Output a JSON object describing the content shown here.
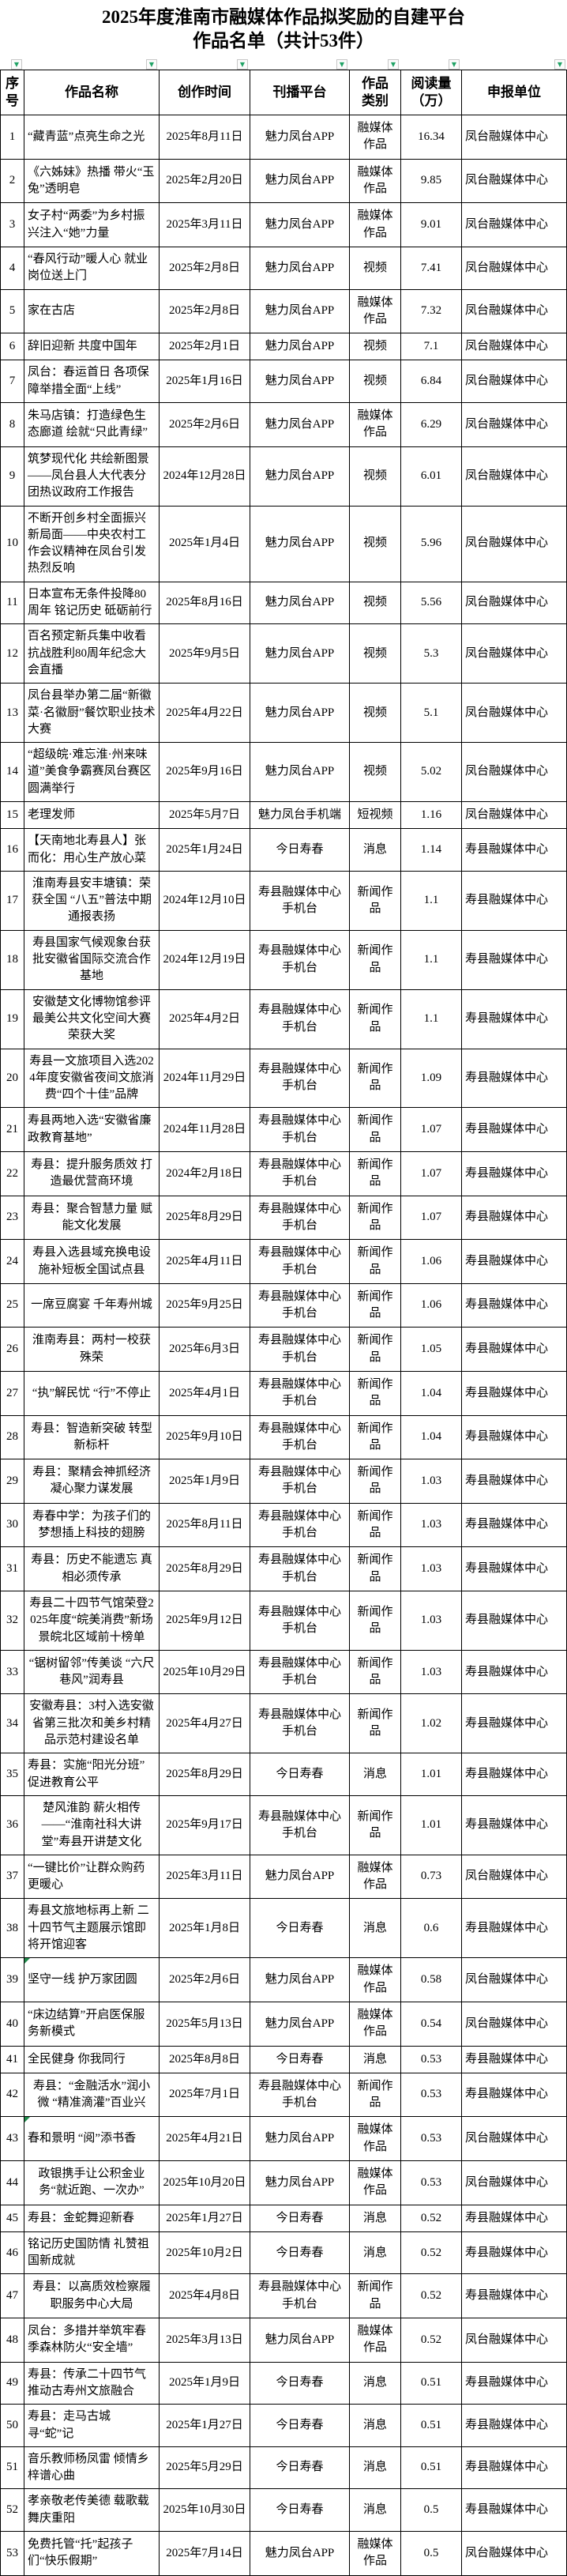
{
  "doc": {
    "title_line1": "2025年度淮南市融媒体作品拟奖励的自建平台",
    "title_line2": "作品名单（共计53件）"
  },
  "colors": {
    "filter_green": "#21a366",
    "flag_green": "#1e8a4a",
    "border": "#000000",
    "background": "#ffffff",
    "text": "#000000"
  },
  "icons": {
    "filter_dropdown": "▼"
  },
  "table": {
    "headers": [
      "序号",
      "作品名称",
      "创作时间",
      "刊播平台",
      "作品\n类别",
      "阅读量\n（万）",
      "申报单位"
    ],
    "rows": [
      {
        "no": "1",
        "name": "“藏青蓝”点亮生命之光",
        "date": "2025年8月11日",
        "platform": "魅力凤台APP",
        "category": "融媒体作品",
        "views": "16.34",
        "unit": "凤台融媒体中心",
        "align": "left",
        "flag": false
      },
      {
        "no": "2",
        "name": "《六姊妹》热播 带火“玉兔”透明皂",
        "date": "2025年2月20日",
        "platform": "魅力凤台APP",
        "category": "融媒体作品",
        "views": "9.85",
        "unit": "凤台融媒体中心",
        "align": "left",
        "flag": false
      },
      {
        "no": "3",
        "name": "女子村“两委”为乡村振兴注入“她”力量",
        "date": "2025年3月11日",
        "platform": "魅力凤台APP",
        "category": "融媒体作品",
        "views": "9.01",
        "unit": "凤台融媒体中心",
        "align": "left",
        "flag": false
      },
      {
        "no": "4",
        "name": "“春风行动”暖人心 就业岗位送上门",
        "date": "2025年2月8日",
        "platform": "魅力凤台APP",
        "category": "视频",
        "views": "7.41",
        "unit": "凤台融媒体中心",
        "align": "left",
        "flag": false
      },
      {
        "no": "5",
        "name": "家在古店",
        "date": "2025年2月8日",
        "platform": "魅力凤台APP",
        "category": "融媒体作品",
        "views": "7.32",
        "unit": "凤台融媒体中心",
        "align": "left",
        "flag": false
      },
      {
        "no": "6",
        "name": "辞旧迎新 共度中国年",
        "date": "2025年2月1日",
        "platform": "魅力凤台APP",
        "category": "视频",
        "views": "7.1",
        "unit": "凤台融媒体中心",
        "align": "left",
        "flag": false
      },
      {
        "no": "7",
        "name": "凤台：春运首日 各项保障举措全面“上线”",
        "date": "2025年1月16日",
        "platform": "魅力凤台APP",
        "category": "视频",
        "views": "6.84",
        "unit": "凤台融媒体中心",
        "align": "left",
        "flag": false
      },
      {
        "no": "8",
        "name": "朱马店镇：打造绿色生态廊道  绘就“只此青绿”",
        "date": "2025年2月6日",
        "platform": "魅力凤台APP",
        "category": "融媒体作品",
        "views": "6.29",
        "unit": "凤台融媒体中心",
        "align": "left",
        "flag": false
      },
      {
        "no": "9",
        "name": "筑梦现代化 共绘新图景——凤台县人大代表分团热议政府工作报告",
        "date": "2024年12月28日",
        "platform": "魅力凤台APP",
        "category": "视频",
        "views": "6.01",
        "unit": "凤台融媒体中心",
        "align": "left",
        "flag": false
      },
      {
        "no": "10",
        "name": "不断开创乡村全面振兴新局面——中央农村工作会议精神在凤台引发热烈反响",
        "date": "2025年1月4日",
        "platform": "魅力凤台APP",
        "category": "视频",
        "views": "5.96",
        "unit": "凤台融媒体中心",
        "align": "left",
        "flag": false
      },
      {
        "no": "11",
        "name": "日本宣布无条件投降80周年 铭记历史 砥砺前行",
        "date": "2025年8月16日",
        "platform": "魅力凤台APP",
        "category": "视频",
        "views": "5.56",
        "unit": "凤台融媒体中心",
        "align": "left",
        "flag": false
      },
      {
        "no": "12",
        "name": "百名预定新兵集中收看抗战胜利80周年纪念大会直播",
        "date": "2025年9月5日",
        "platform": "魅力凤台APP",
        "category": "视频",
        "views": "5.3",
        "unit": "凤台融媒体中心",
        "align": "left",
        "flag": false
      },
      {
        "no": "13",
        "name": "凤台县举办第二届“新徽菜·名徽厨”餐饮职业技术大赛",
        "date": "2025年4月22日",
        "platform": "魅力凤台APP",
        "category": "视频",
        "views": "5.1",
        "unit": "凤台融媒体中心",
        "align": "left",
        "flag": false
      },
      {
        "no": "14",
        "name": "“超级皖·难忘淮·州来味道”美食争霸赛凤台赛区圆满举行",
        "date": "2025年9月16日",
        "platform": "魅力凤台APP",
        "category": "视频",
        "views": "5.02",
        "unit": "凤台融媒体中心",
        "align": "left",
        "flag": false
      },
      {
        "no": "15",
        "name": "老理发师",
        "date": "2025年5月7日",
        "platform": "魅力凤台手机端",
        "category": "短视频",
        "views": "1.16",
        "unit": "凤台融媒体中心",
        "align": "left",
        "flag": false
      },
      {
        "no": "16",
        "name": "【天南地北寿县人】张而化：用心生产放心菜",
        "date": "2025年1月24日",
        "platform": "今日寿春",
        "category": "消息",
        "views": "1.14",
        "unit": "寿县融媒体中心",
        "align": "left",
        "flag": false
      },
      {
        "no": "17",
        "name": "淮南寿县安丰塘镇：荣获全国 “八五”普法中期通报表扬",
        "date": "2024年12月10日",
        "platform": "寿县融媒体中心手机台",
        "category": "新闻作品",
        "views": "1.1",
        "unit": "寿县融媒体中心",
        "align": "center",
        "flag": false
      },
      {
        "no": "18",
        "name": "寿县国家气候观象台获批安徽省国际交流合作基地",
        "date": "2024年12月19日",
        "platform": "寿县融媒体中心手机台",
        "category": "新闻作品",
        "views": "1.1",
        "unit": "寿县融媒体中心",
        "align": "center",
        "flag": false
      },
      {
        "no": "19",
        "name": "安徽楚文化博物馆参评最美公共文化空间大赛荣获大奖",
        "date": "2025年4月2日",
        "platform": "寿县融媒体中心手机台",
        "category": "新闻作品",
        "views": "1.1",
        "unit": "寿县融媒体中心",
        "align": "center",
        "flag": false
      },
      {
        "no": "20",
        "name": "寿县一文旅项目入选2024年度安徽省夜间文旅消费“四个十佳”品牌",
        "date": "2024年11月29日",
        "platform": "寿县融媒体中心手机台",
        "category": "新闻作品",
        "views": "1.09",
        "unit": "寿县融媒体中心",
        "align": "center",
        "flag": false
      },
      {
        "no": "21",
        "name": "寿县两地入选“安徽省廉政教育基地”",
        "date": "2024年11月28日",
        "platform": "寿县融媒体中心手机台",
        "category": "新闻作品",
        "views": "1.07",
        "unit": "寿县融媒体中心",
        "align": "left",
        "flag": false
      },
      {
        "no": "22",
        "name": "寿县：提升服务质效 打造最优营商环境",
        "date": "2024年2月18日",
        "platform": "寿县融媒体中心手机台",
        "category": "新闻作品",
        "views": "1.07",
        "unit": "寿县融媒体中心",
        "align": "center",
        "flag": false
      },
      {
        "no": "23",
        "name": "寿县：聚合智慧力量 赋能文化发展",
        "date": "2025年8月29日",
        "platform": "寿县融媒体中心手机台",
        "category": "新闻作品",
        "views": "1.07",
        "unit": "寿县融媒体中心",
        "align": "center",
        "flag": false
      },
      {
        "no": "24",
        "name": "寿县入选县域充换电设施补短板全国试点县",
        "date": "2025年4月11日",
        "platform": "寿县融媒体中心手机台",
        "category": "新闻作品",
        "views": "1.06",
        "unit": "寿县融媒体中心",
        "align": "center",
        "flag": false
      },
      {
        "no": "25",
        "name": "一席豆腐宴 千年寿州城",
        "date": "2025年9月25日",
        "platform": "寿县融媒体中心手机台",
        "category": "新闻作品",
        "views": "1.06",
        "unit": "寿县融媒体中心",
        "align": "center",
        "flag": false
      },
      {
        "no": "26",
        "name": "淮南寿县：两村一校获殊荣",
        "date": "2025年6月3日",
        "platform": "寿县融媒体中心手机台",
        "category": "新闻作品",
        "views": "1.05",
        "unit": "寿县融媒体中心",
        "align": "center",
        "flag": false
      },
      {
        "no": "27",
        "name": "“执”解民忧 “行”不停止",
        "date": "2025年4月1日",
        "platform": "寿县融媒体中心手机台",
        "category": "新闻作品",
        "views": "1.04",
        "unit": "寿县融媒体中心",
        "align": "center",
        "flag": false
      },
      {
        "no": "28",
        "name": "寿县：智造新突破 转型新标杆",
        "date": "2025年9月10日",
        "platform": "寿县融媒体中心手机台",
        "category": "新闻作品",
        "views": "1.04",
        "unit": "寿县融媒体中心",
        "align": "center",
        "flag": false
      },
      {
        "no": "29",
        "name": "寿县：聚精会神抓经济 凝心聚力谋发展",
        "date": "2025年1月9日",
        "platform": "寿县融媒体中心手机台",
        "category": "新闻作品",
        "views": "1.03",
        "unit": "寿县融媒体中心",
        "align": "center",
        "flag": false
      },
      {
        "no": "30",
        "name": "寿春中学：为孩子们的梦想插上科技的翅膀",
        "date": "2025年8月11日",
        "platform": "寿县融媒体中心手机台",
        "category": "新闻作品",
        "views": "1.03",
        "unit": "寿县融媒体中心",
        "align": "center",
        "flag": false
      },
      {
        "no": "31",
        "name": "寿县：历史不能遗忘 真相必须传承",
        "date": "2025年8月29日",
        "platform": "寿县融媒体中心手机台",
        "category": "新闻作品",
        "views": "1.03",
        "unit": "寿县融媒体中心",
        "align": "center",
        "flag": false
      },
      {
        "no": "32",
        "name": "寿县二十四节气馆荣登2025年度“皖美消费”新场景皖北区域前十榜单",
        "date": "2025年9月12日",
        "platform": "寿县融媒体中心手机台",
        "category": "新闻作品",
        "views": "1.03",
        "unit": "寿县融媒体中心",
        "align": "center",
        "flag": false
      },
      {
        "no": "33",
        "name": "“锯树留邻”传美谈 “六尺巷风”润寿县",
        "date": "2025年10月29日",
        "platform": "寿县融媒体中心手机台",
        "category": "新闻作品",
        "views": "1.03",
        "unit": "寿县融媒体中心",
        "align": "center",
        "flag": false
      },
      {
        "no": "34",
        "name": "安徽寿县：3村入选安徽省第三批次和美乡村精品示范村建设名单",
        "date": "2025年4月27日",
        "platform": "寿县融媒体中心手机台",
        "category": "新闻作品",
        "views": "1.02",
        "unit": "寿县融媒体中心",
        "align": "center",
        "flag": false
      },
      {
        "no": "35",
        "name": "寿县：实施“阳光分班” 促进教育公平",
        "date": "2025年8月29日",
        "platform": "今日寿春",
        "category": "消息",
        "views": "1.01",
        "unit": "寿县融媒体中心",
        "align": "left",
        "flag": false
      },
      {
        "no": "36",
        "name": "楚风淮韵 薪火相传——“淮南社科大讲堂”寿县开讲楚文化",
        "date": "2025年9月17日",
        "platform": "寿县融媒体中心手机台",
        "category": "新闻作品",
        "views": "1.01",
        "unit": "寿县融媒体中心",
        "align": "center",
        "flag": false
      },
      {
        "no": "37",
        "name": "“一键比价”让群众购药更暖心",
        "date": "2025年3月11日",
        "platform": "魅力凤台APP",
        "category": "融媒体作品",
        "views": "0.73",
        "unit": "凤台融媒体中心",
        "align": "left",
        "flag": false
      },
      {
        "no": "38",
        "name": "寿县文旅地标再上新 二十四节气主题展示馆即将开馆迎客",
        "date": "2025年1月8日",
        "platform": "今日寿春",
        "category": "消息",
        "views": "0.6",
        "unit": "寿县融媒体中心",
        "align": "left",
        "flag": false
      },
      {
        "no": "39",
        "name": "坚守一线  护万家团圆",
        "date": "2025年2月6日",
        "platform": "魅力凤台APP",
        "category": "融媒体作品",
        "views": "0.58",
        "unit": "凤台融媒体中心",
        "align": "left",
        "flag": true
      },
      {
        "no": "40",
        "name": "“床边结算”开启医保服务新模式",
        "date": "2025年5月13日",
        "platform": "魅力凤台APP",
        "category": "融媒体作品",
        "views": "0.54",
        "unit": "凤台融媒体中心",
        "align": "left",
        "flag": false
      },
      {
        "no": "41",
        "name": "全民健身 你我同行",
        "date": "2025年8月8日",
        "platform": "今日寿春",
        "category": "消息",
        "views": "0.53",
        "unit": "寿县融媒体中心",
        "align": "left",
        "flag": false
      },
      {
        "no": "42",
        "name": "寿县：“金融活水”润小微 “精准滴灌”百业兴",
        "date": "2025年7月1日",
        "platform": "寿县融媒体中心手机台",
        "category": "新闻作品",
        "views": "0.53",
        "unit": "寿县融媒体中心",
        "align": "center",
        "flag": false
      },
      {
        "no": "43",
        "name": "春和景明 “阅”添书香",
        "date": "2025年4月21日",
        "platform": "魅力凤台APP",
        "category": "融媒体作品",
        "views": "0.53",
        "unit": "凤台融媒体中心",
        "align": "left",
        "flag": true
      },
      {
        "no": "44",
        "name": "政银携手让公积金业务“就近跑、一次办”",
        "date": "2025年10月20日",
        "platform": "魅力凤台APP",
        "category": "融媒体作品",
        "views": "0.53",
        "unit": "凤台融媒体中心",
        "align": "center",
        "flag": false
      },
      {
        "no": "45",
        "name": "寿县：金蛇舞迎新春",
        "date": "2025年1月27日",
        "platform": "今日寿春",
        "category": "消息",
        "views": "0.52",
        "unit": "寿县融媒体中心",
        "align": "left",
        "flag": false
      },
      {
        "no": "46",
        "name": "铭记历史国防情 礼赞祖国新成就",
        "date": "2025年10月2日",
        "platform": "今日寿春",
        "category": "消息",
        "views": "0.52",
        "unit": "寿县融媒体中心",
        "align": "left",
        "flag": false
      },
      {
        "no": "47",
        "name": "寿县：以高质效检察履职服务中心大局",
        "date": "2025年4月8日",
        "platform": "寿县融媒体中心手机台",
        "category": "新闻作品",
        "views": "0.52",
        "unit": "寿县融媒体中心",
        "align": "center",
        "flag": false
      },
      {
        "no": "48",
        "name": "凤台：多措并举筑牢春季森林防火“安全墙”",
        "date": "2025年3月13日",
        "platform": "魅力凤台APP",
        "category": "融媒体作品",
        "views": "0.52",
        "unit": "凤台融媒体中心",
        "align": "left",
        "flag": false
      },
      {
        "no": "49",
        "name": "寿县：传承二十四节气 推动古寿州文旅融合",
        "date": "2025年1月9日",
        "platform": "今日寿春",
        "category": "消息",
        "views": "0.51",
        "unit": "寿县融媒体中心",
        "align": "left",
        "flag": false
      },
      {
        "no": "50",
        "name": "寿县：走马古城寻“蛇”记",
        "date": "2025年1月27日",
        "platform": "今日寿春",
        "category": "消息",
        "views": "0.51",
        "unit": "寿县融媒体中心",
        "align": "left",
        "flag": false
      },
      {
        "no": "51",
        "name": "音乐教师杨凤雷 倾情乡梓谱心曲",
        "date": "2025年5月29日",
        "platform": "今日寿春",
        "category": "消息",
        "views": "0.51",
        "unit": "寿县融媒体中心",
        "align": "left",
        "flag": false
      },
      {
        "no": "52",
        "name": "孝亲敬老传美德 载歌载舞庆重阳",
        "date": "2025年10月30日",
        "platform": "今日寿春",
        "category": "消息",
        "views": "0.5",
        "unit": "寿县融媒体中心",
        "align": "left",
        "flag": false
      },
      {
        "no": "53",
        "name": "免费托管“托”起孩子们“快乐假期”",
        "date": "2025年7月14日",
        "platform": "魅力凤台APP",
        "category": "融媒体作品",
        "views": "0.5",
        "unit": "凤台融媒体中心",
        "align": "left",
        "flag": false
      }
    ]
  }
}
